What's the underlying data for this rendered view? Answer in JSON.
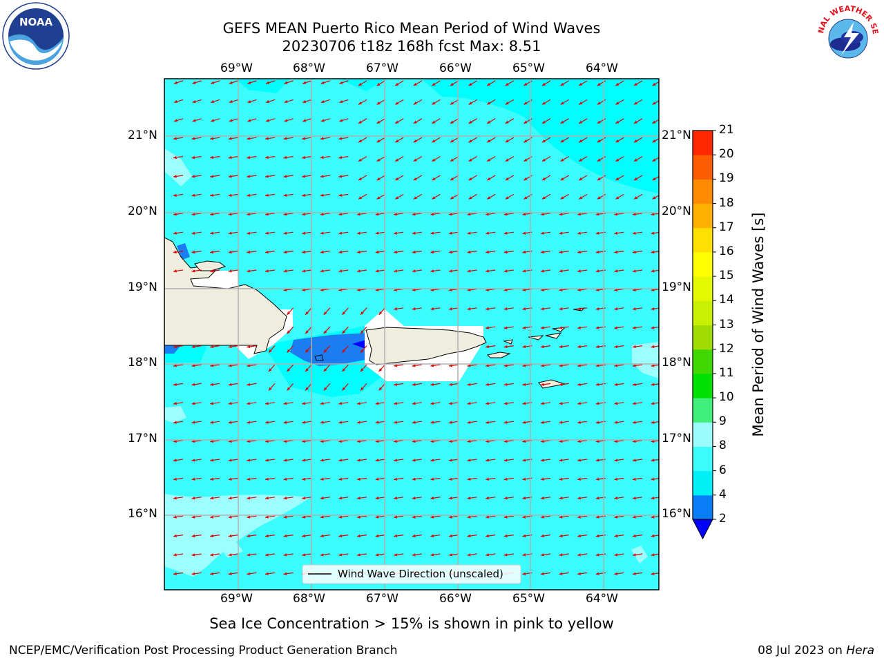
{
  "title": {
    "line1": "GEFS MEAN Puerto Rico Mean Period of Wind Waves",
    "line2": "20230706 t18z 168h fcst   Max: 8.51"
  },
  "logos": {
    "left": {
      "name": "noaa-logo",
      "text": "NOAA"
    },
    "right": {
      "name": "nws-logo",
      "text": "NATIONAL WEATHER SERVICE"
    }
  },
  "map": {
    "lon_ticks": [
      "69°W",
      "68°W",
      "67°W",
      "66°W",
      "65°W",
      "64°W"
    ],
    "lat_ticks": [
      "21°N",
      "20°N",
      "19°N",
      "18°N",
      "17°N",
      "16°N"
    ],
    "legend_label": "Wind Wave Direction (unscaled)",
    "colors": {
      "land": "#efedde",
      "ocean_main": "#3bfdfd",
      "ocean_light": "#9efefe",
      "ocean_cyan": "#00fefe",
      "ocean_blue": "#1a7ef2",
      "ocean_dark": "#0000fe",
      "arrow": "#e00000"
    }
  },
  "colorbar": {
    "label": "Mean Period of Wind Waves [s]",
    "ticks": [
      "2",
      "4",
      "6",
      "8",
      "9",
      "10",
      "11",
      "12",
      "13",
      "14",
      "15",
      "16",
      "17",
      "18",
      "19",
      "20",
      "21"
    ],
    "colors": [
      "#0a7ef8",
      "#00f0f8",
      "#3cfcfc",
      "#9cfcfc",
      "#40f07a",
      "#00e000",
      "#40d800",
      "#a0dc00",
      "#c8f000",
      "#e4f800",
      "#ffff00",
      "#ffe000",
      "#ffb000",
      "#ff8c00",
      "#ff5c00",
      "#ff2800",
      "#ff0000"
    ],
    "under_color": "#0000ff"
  },
  "subtitle": "Sea Ice Concentration > 15% is shown in pink to yellow",
  "footer": {
    "left": "NCEP/EMC/Verification Post Processing Product Generation Branch",
    "right_date": "08 Jul 2023 on ",
    "right_host": "Hera"
  }
}
